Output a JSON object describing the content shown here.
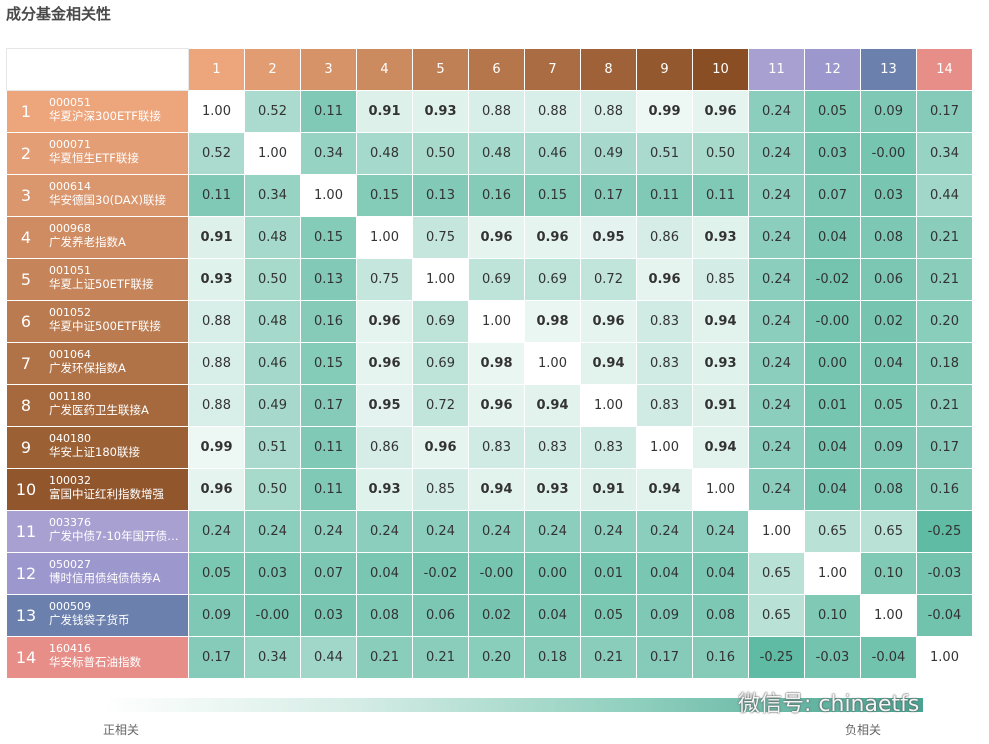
{
  "page": {
    "title": "成分基金相关性"
  },
  "header_numbers": [
    "1",
    "2",
    "3",
    "4",
    "5",
    "6",
    "7",
    "8",
    "9",
    "10",
    "11",
    "12",
    "13",
    "14"
  ],
  "header_colors": [
    "#eda57c",
    "#e29c72",
    "#d79368",
    "#cc8a5f",
    "#c08055",
    "#b5764b",
    "#aa6c42",
    "#9f6238",
    "#94582e",
    "#8a4e25",
    "#a9a0d2",
    "#9c97cc",
    "#6b80ac",
    "#e88e88"
  ],
  "rows": [
    {
      "num": "1",
      "code": "000051",
      "name": "华夏沪深300ETF联接",
      "color": "#eda57c",
      "values": [
        "1.00",
        "0.52",
        "0.11",
        "0.91",
        "0.93",
        "0.88",
        "0.88",
        "0.88",
        "0.99",
        "0.96",
        "0.24",
        "0.05",
        "0.09",
        "0.17"
      ]
    },
    {
      "num": "2",
      "code": "000071",
      "name": "华夏恒生ETF联接",
      "color": "#e39e75",
      "values": [
        "0.52",
        "1.00",
        "0.34",
        "0.48",
        "0.50",
        "0.48",
        "0.46",
        "0.49",
        "0.51",
        "0.50",
        "0.24",
        "0.03",
        "-0.00",
        "0.34"
      ]
    },
    {
      "num": "3",
      "code": "000614",
      "name": "华安德国30(DAX)联接",
      "color": "#da966d",
      "values": [
        "0.11",
        "0.34",
        "1.00",
        "0.15",
        "0.13",
        "0.16",
        "0.15",
        "0.17",
        "0.11",
        "0.11",
        "0.24",
        "0.07",
        "0.03",
        "0.44"
      ]
    },
    {
      "num": "4",
      "code": "000968",
      "name": "广发养老指数A",
      "color": "#cf8c62",
      "values": [
        "0.91",
        "0.48",
        "0.15",
        "1.00",
        "0.75",
        "0.96",
        "0.96",
        "0.95",
        "0.86",
        "0.93",
        "0.24",
        "0.04",
        "0.08",
        "0.21"
      ]
    },
    {
      "num": "5",
      "code": "001051",
      "name": "华夏上证50ETF联接",
      "color": "#c5845a",
      "values": [
        "0.93",
        "0.50",
        "0.13",
        "0.75",
        "1.00",
        "0.69",
        "0.69",
        "0.72",
        "0.96",
        "0.85",
        "0.24",
        "-0.02",
        "0.06",
        "0.21"
      ]
    },
    {
      "num": "6",
      "code": "001052",
      "name": "华夏中证500ETF联接",
      "color": "#ba7b50",
      "values": [
        "0.88",
        "0.48",
        "0.16",
        "0.96",
        "0.69",
        "1.00",
        "0.98",
        "0.96",
        "0.83",
        "0.94",
        "0.24",
        "-0.00",
        "0.02",
        "0.20"
      ]
    },
    {
      "num": "7",
      "code": "001064",
      "name": "广发环保指数A",
      "color": "#b07247",
      "values": [
        "0.88",
        "0.46",
        "0.15",
        "0.96",
        "0.69",
        "0.98",
        "1.00",
        "0.94",
        "0.83",
        "0.93",
        "0.24",
        "0.00",
        "0.04",
        "0.18"
      ]
    },
    {
      "num": "8",
      "code": "001180",
      "name": "广发医药卫生联接A",
      "color": "#a6693e",
      "values": [
        "0.88",
        "0.49",
        "0.17",
        "0.95",
        "0.72",
        "0.96",
        "0.94",
        "1.00",
        "0.83",
        "0.91",
        "0.24",
        "0.01",
        "0.05",
        "0.21"
      ]
    },
    {
      "num": "9",
      "code": "040180",
      "name": "华安上证180联接",
      "color": "#9c6035",
      "values": [
        "0.99",
        "0.51",
        "0.11",
        "0.86",
        "0.96",
        "0.83",
        "0.83",
        "0.83",
        "1.00",
        "0.94",
        "0.24",
        "0.04",
        "0.09",
        "0.17"
      ]
    },
    {
      "num": "10",
      "code": "100032",
      "name": "富国中证红利指数增强",
      "color": "#91562c",
      "values": [
        "0.96",
        "0.50",
        "0.11",
        "0.93",
        "0.85",
        "0.94",
        "0.93",
        "0.91",
        "0.94",
        "1.00",
        "0.24",
        "0.04",
        "0.08",
        "0.16"
      ]
    },
    {
      "num": "11",
      "code": "003376",
      "name": "广发中债7-10年国开债…",
      "color": "#a9a0d2",
      "values": [
        "0.24",
        "0.24",
        "0.24",
        "0.24",
        "0.24",
        "0.24",
        "0.24",
        "0.24",
        "0.24",
        "0.24",
        "1.00",
        "0.65",
        "0.65",
        "-0.25"
      ]
    },
    {
      "num": "12",
      "code": "050027",
      "name": "博时信用债纯债债券A",
      "color": "#9c97cc",
      "values": [
        "0.05",
        "0.03",
        "0.07",
        "0.04",
        "-0.02",
        "-0.00",
        "0.00",
        "0.01",
        "0.04",
        "0.04",
        "0.65",
        "1.00",
        "0.10",
        "-0.03"
      ]
    },
    {
      "num": "13",
      "code": "000509",
      "name": "广发钱袋子货币",
      "color": "#6b80ac",
      "values": [
        "0.09",
        "-0.00",
        "0.03",
        "0.08",
        "0.06",
        "0.02",
        "0.04",
        "0.05",
        "0.09",
        "0.08",
        "0.65",
        "0.10",
        "1.00",
        "-0.04"
      ]
    },
    {
      "num": "14",
      "code": "160416",
      "name": "华安标普石油指数",
      "color": "#e88e88",
      "values": [
        "0.17",
        "0.34",
        "0.44",
        "0.21",
        "0.21",
        "0.20",
        "0.18",
        "0.21",
        "0.17",
        "0.16",
        "-0.25",
        "-0.03",
        "-0.04",
        "1.00"
      ]
    }
  ],
  "legend": {
    "positive_label": "正相关",
    "negative_label": "负相关"
  },
  "watermark": "微信号: chinaetfs",
  "chart_data": {
    "type": "heatmap",
    "title": "成分基金相关性",
    "x": [
      "1",
      "2",
      "3",
      "4",
      "5",
      "6",
      "7",
      "8",
      "9",
      "10",
      "11",
      "12",
      "13",
      "14"
    ],
    "y": [
      "000051 华夏沪深300ETF联接",
      "000071 华夏恒生ETF联接",
      "000614 华安德国30(DAX)联接",
      "000968 广发养老指数A",
      "001051 华夏上证50ETF联接",
      "001052 华夏中证500ETF联接",
      "001064 广发环保指数A",
      "001180 广发医药卫生联接A",
      "040180 华安上证180联接",
      "100032 富国中证红利指数增强",
      "003376 广发中债7-10年国开债…",
      "050027 博时信用债纯债债券A",
      "000509 广发钱袋子货币",
      "160416 华安标普石油指数"
    ],
    "values": [
      [
        1.0,
        0.52,
        0.11,
        0.91,
        0.93,
        0.88,
        0.88,
        0.88,
        0.99,
        0.96,
        0.24,
        0.05,
        0.09,
        0.17
      ],
      [
        0.52,
        1.0,
        0.34,
        0.48,
        0.5,
        0.48,
        0.46,
        0.49,
        0.51,
        0.5,
        0.24,
        0.03,
        -0.0,
        0.34
      ],
      [
        0.11,
        0.34,
        1.0,
        0.15,
        0.13,
        0.16,
        0.15,
        0.17,
        0.11,
        0.11,
        0.24,
        0.07,
        0.03,
        0.44
      ],
      [
        0.91,
        0.48,
        0.15,
        1.0,
        0.75,
        0.96,
        0.96,
        0.95,
        0.86,
        0.93,
        0.24,
        0.04,
        0.08,
        0.21
      ],
      [
        0.93,
        0.5,
        0.13,
        0.75,
        1.0,
        0.69,
        0.69,
        0.72,
        0.96,
        0.85,
        0.24,
        -0.02,
        0.06,
        0.21
      ],
      [
        0.88,
        0.48,
        0.16,
        0.96,
        0.69,
        1.0,
        0.98,
        0.96,
        0.83,
        0.94,
        0.24,
        -0.0,
        0.02,
        0.2
      ],
      [
        0.88,
        0.46,
        0.15,
        0.96,
        0.69,
        0.98,
        1.0,
        0.94,
        0.83,
        0.93,
        0.24,
        0.0,
        0.04,
        0.18
      ],
      [
        0.88,
        0.49,
        0.17,
        0.95,
        0.72,
        0.96,
        0.94,
        1.0,
        0.83,
        0.91,
        0.24,
        0.01,
        0.05,
        0.21
      ],
      [
        0.99,
        0.51,
        0.11,
        0.86,
        0.96,
        0.83,
        0.83,
        0.83,
        1.0,
        0.94,
        0.24,
        0.04,
        0.09,
        0.17
      ],
      [
        0.96,
        0.5,
        0.11,
        0.93,
        0.85,
        0.94,
        0.93,
        0.91,
        0.94,
        1.0,
        0.24,
        0.04,
        0.08,
        0.16
      ],
      [
        0.24,
        0.24,
        0.24,
        0.24,
        0.24,
        0.24,
        0.24,
        0.24,
        0.24,
        0.24,
        1.0,
        0.65,
        0.65,
        -0.25
      ],
      [
        0.05,
        0.03,
        0.07,
        0.04,
        -0.02,
        -0.0,
        0.0,
        0.01,
        0.04,
        0.04,
        0.65,
        1.0,
        0.1,
        -0.03
      ],
      [
        0.09,
        -0.0,
        0.03,
        0.08,
        0.06,
        0.02,
        0.04,
        0.05,
        0.09,
        0.08,
        0.65,
        0.1,
        1.0,
        -0.04
      ],
      [
        0.17,
        0.34,
        0.44,
        0.21,
        0.21,
        0.2,
        0.18,
        0.21,
        0.17,
        0.16,
        -0.25,
        -0.03,
        -0.04,
        1.0
      ]
    ],
    "color_scale": {
      "low_label": "负相关",
      "high_label": "正相关",
      "high_color": "#ffffff",
      "low_color": "#4aa392"
    }
  }
}
